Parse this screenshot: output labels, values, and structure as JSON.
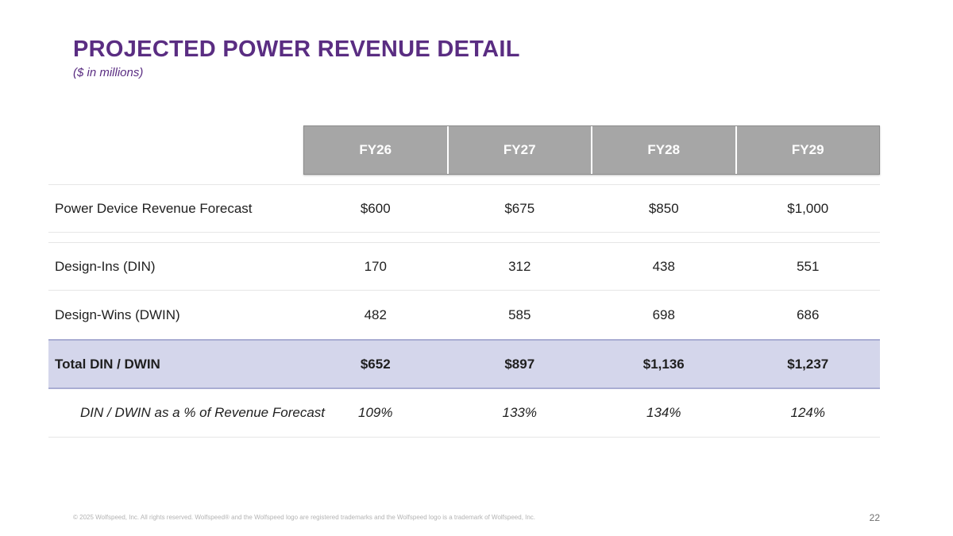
{
  "slide": {
    "title": "PROJECTED POWER REVENUE DETAIL",
    "subtitle": "($ in millions)",
    "footer": "© 2025 Wolfspeed, Inc. All rights reserved. Wolfspeed® and the Wolfspeed logo are registered trademarks and the Wolfspeed logo is a trademark of Wolfspeed, Inc.",
    "page_number": "22",
    "accent_color": "#5a2d82"
  },
  "table": {
    "headers": [
      "FY26",
      "FY27",
      "FY28",
      "FY29"
    ],
    "rows": [
      {
        "label": "Power Device Revenue Forecast",
        "values": [
          "$600",
          "$675",
          "$850",
          "$1,000"
        ]
      },
      {
        "label": "Design-Ins (DIN)",
        "values": [
          "170",
          "312",
          "438",
          "551"
        ]
      },
      {
        "label": "Design-Wins (DWIN)",
        "values": [
          "482",
          "585",
          "698",
          "686"
        ]
      },
      {
        "label": "Total DIN / DWIN",
        "values": [
          "$652",
          "$897",
          "$1,136",
          "$1,237"
        ]
      },
      {
        "label": "DIN / DWIN as a % of Revenue Forecast",
        "values": [
          "109%",
          "133%",
          "134%",
          "124%"
        ]
      }
    ]
  }
}
